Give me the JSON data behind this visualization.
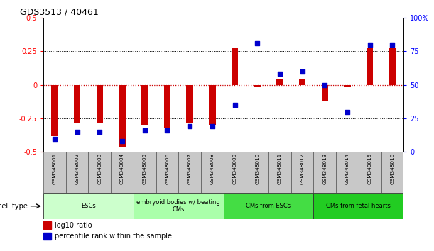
{
  "title": "GDS3513 / 40461",
  "samples": [
    "GSM348001",
    "GSM348002",
    "GSM348003",
    "GSM348004",
    "GSM348005",
    "GSM348006",
    "GSM348007",
    "GSM348008",
    "GSM348009",
    "GSM348010",
    "GSM348011",
    "GSM348012",
    "GSM348013",
    "GSM348014",
    "GSM348015",
    "GSM348016"
  ],
  "log10_ratio": [
    -0.38,
    -0.28,
    -0.28,
    -0.46,
    -0.3,
    -0.32,
    -0.28,
    -0.3,
    0.28,
    -0.01,
    0.04,
    0.04,
    -0.12,
    -0.02,
    0.27,
    0.27
  ],
  "percentile_rank": [
    10,
    15,
    15,
    8,
    16,
    16,
    19,
    19,
    35,
    81,
    58,
    60,
    50,
    30,
    80,
    80
  ],
  "cell_type_groups": [
    {
      "label": "ESCs",
      "start": 0,
      "end": 3,
      "color": "#ccffcc"
    },
    {
      "label": "embryoid bodies w/ beating\nCMs",
      "start": 4,
      "end": 7,
      "color": "#aaffaa"
    },
    {
      "label": "CMs from ESCs",
      "start": 8,
      "end": 11,
      "color": "#44dd44"
    },
    {
      "label": "CMs from fetal hearts",
      "start": 12,
      "end": 15,
      "color": "#22cc22"
    }
  ],
  "ylim_left": [
    -0.5,
    0.5
  ],
  "ylim_right": [
    0,
    100
  ],
  "yticks_left": [
    -0.5,
    -0.25,
    0,
    0.25,
    0.5
  ],
  "ytick_labels_left": [
    "-0.5",
    "-0.25",
    "0",
    "0.25",
    "0.5"
  ],
  "yticks_right": [
    0,
    25,
    50,
    75,
    100
  ],
  "ytick_labels_right": [
    "0",
    "25",
    "50",
    "75",
    "100%"
  ],
  "bar_color": "#cc0000",
  "dot_color": "#0000cc",
  "bg_color": "#ffffff",
  "zero_line_color": "#cc0000"
}
